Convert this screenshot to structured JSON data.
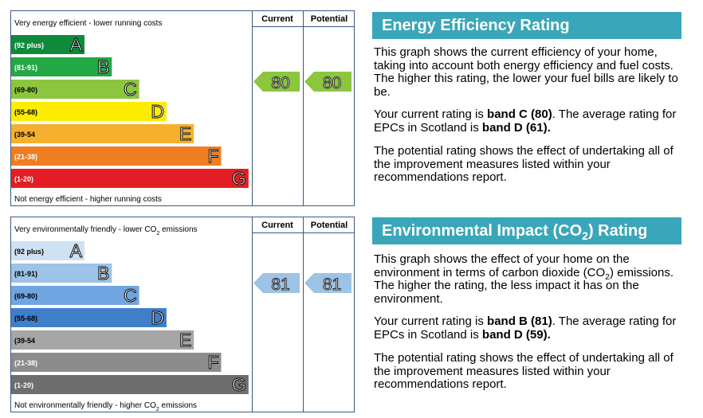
{
  "energy_chart": {
    "top_label": [
      {
        "text": "Very energy efficient - lower running costs"
      }
    ],
    "bottom_label": [
      {
        "text": "Not energy efficient - higher running costs"
      }
    ],
    "current_header": "Current",
    "potential_header": "Potential",
    "bands": [
      {
        "range": "(92 plus)",
        "letter": "A",
        "color": "#0f8a3c",
        "label_color": "#ffffff"
      },
      {
        "range": "(81-91)",
        "letter": "B",
        "color": "#22a844",
        "label_color": "#ffffff"
      },
      {
        "range": "(69-80)",
        "letter": "C",
        "color": "#8cc63f",
        "label_color": "#000000"
      },
      {
        "range": "(55-68)",
        "letter": "D",
        "color": "#ffed00",
        "label_color": "#000000"
      },
      {
        "range": "(39-54",
        "letter": "E",
        "color": "#f7b02e",
        "label_color": "#000000"
      },
      {
        "range": "(21-38)",
        "letter": "F",
        "color": "#ef7d22",
        "label_color": "#ffffff"
      },
      {
        "range": "(1-20)",
        "letter": "G",
        "color": "#e31d23",
        "label_color": "#ffffff"
      }
    ],
    "current": 80,
    "potential": 80,
    "arrow_color": "#8cc63f"
  },
  "environment_chart": {
    "top_label": [
      {
        "text": "Very environmentally friendly - lower CO"
      },
      {
        "text": "2",
        "sub": true
      },
      {
        "text": " emissions"
      }
    ],
    "bottom_label": [
      {
        "text": "Not environmentally friendly - higher CO"
      },
      {
        "text": "2",
        "sub": true
      },
      {
        "text": " emissions"
      }
    ],
    "current_header": "Current",
    "potential_header": "Potential",
    "bands": [
      {
        "range": "(92 plus)",
        "letter": "A",
        "color": "#cfe2f3",
        "label_color": "#000000"
      },
      {
        "range": "(81-91)",
        "letter": "B",
        "color": "#9dc3e6",
        "label_color": "#000000"
      },
      {
        "range": "(69-80)",
        "letter": "C",
        "color": "#6fa6e2",
        "label_color": "#000000"
      },
      {
        "range": "(55-68)",
        "letter": "D",
        "color": "#3f7fc9",
        "label_color": "#000000"
      },
      {
        "range": "(39-54",
        "letter": "E",
        "color": "#a6a6a6",
        "label_color": "#000000"
      },
      {
        "range": "(21-38)",
        "letter": "F",
        "color": "#8c8c8c",
        "label_color": "#ffffff"
      },
      {
        "range": "(1-20)",
        "letter": "G",
        "color": "#6e6e6e",
        "label_color": "#ffffff"
      }
    ],
    "current": 81,
    "potential": 81,
    "arrow_color": "#9dc3e6"
  },
  "energy_text": {
    "title": [
      {
        "text": "Energy Efficiency Rating"
      }
    ],
    "paragraphs": [
      [
        {
          "text": "This graph shows the current efficiency of your home, taking into account both energy efficiency and fuel costs. The higher this rating, the lower your fuel bills are likely to be."
        }
      ],
      [
        {
          "text": "Your current rating is "
        },
        {
          "text": "band C (80)",
          "bold": true
        },
        {
          "text": ". The average rating for EPCs in Scotland is "
        },
        {
          "text": "band D (61).",
          "bold": true
        }
      ],
      [
        {
          "text": "The potential rating shows the effect of undertaking all of the improvement measures listed within your recommendations report."
        }
      ]
    ]
  },
  "environment_text": {
    "title": [
      {
        "text": "Environmental Impact (CO"
      },
      {
        "text": "2",
        "sub": true
      },
      {
        "text": ") Rating"
      }
    ],
    "paragraphs": [
      [
        {
          "text": "This graph shows the effect of your home on the environment in terms of carbon dioxide (CO"
        },
        {
          "text": "2",
          "sub": true
        },
        {
          "text": ") emissions. The higher the rating, the less impact it has on the environment."
        }
      ],
      [
        {
          "text": "Your current rating is "
        },
        {
          "text": "band B (81)",
          "bold": true
        },
        {
          "text": ". The average rating for EPCs in Scotland is "
        },
        {
          "text": "band D (59).",
          "bold": true
        }
      ],
      [
        {
          "text": "The potential rating shows the effect of undertaking all of the improvement measures listed within your recommendations report."
        }
      ]
    ]
  }
}
